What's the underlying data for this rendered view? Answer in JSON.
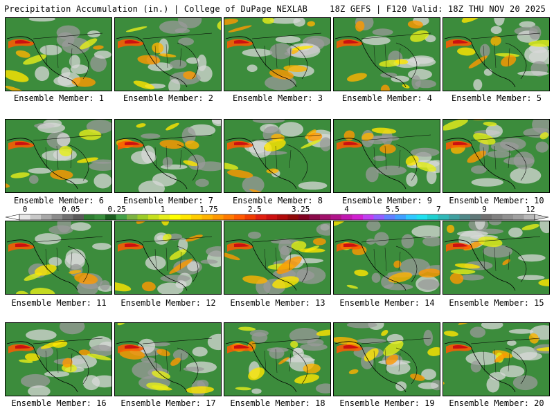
{
  "header": {
    "left": "Precipitation Accumulation (in.) | College of DuPage NEXLAB",
    "right": "18Z GEFS | F120 Valid: 18Z THU NOV 20 2025"
  },
  "members": [
    {
      "label": "Ensemble Member: 1"
    },
    {
      "label": "Ensemble Member: 2"
    },
    {
      "label": "Ensemble Member: 3"
    },
    {
      "label": "Ensemble Member: 4"
    },
    {
      "label": "Ensemble Member: 5"
    },
    {
      "label": "Ensemble Member: 6"
    },
    {
      "label": "Ensemble Member: 7"
    },
    {
      "label": "Ensemble Member: 8"
    },
    {
      "label": "Ensemble Member: 9"
    },
    {
      "label": "Ensemble Member: 10"
    },
    {
      "label": "Ensemble Member: 11"
    },
    {
      "label": "Ensemble Member: 12"
    },
    {
      "label": "Ensemble Member: 13"
    },
    {
      "label": "Ensemble Member: 14"
    },
    {
      "label": "Ensemble Member: 15"
    },
    {
      "label": "Ensemble Member: 16"
    },
    {
      "label": "Ensemble Member: 17"
    },
    {
      "label": "Ensemble Member: 18"
    },
    {
      "label": "Ensemble Member: 19"
    },
    {
      "label": "Ensemble Member: 20"
    }
  ],
  "colorbar": {
    "tick_labels": [
      "0",
      "0.05",
      "0.25",
      "1",
      "1.75",
      "2.5",
      "3.25",
      "4",
      "5.5",
      "7",
      "9",
      "12"
    ],
    "colors": [
      "#e6e6e6",
      "#c8c8c8",
      "#a8a8a8",
      "#8c8c8c",
      "#707070",
      "#5a5a5a",
      "#2e7d32",
      "#388e3c",
      "#1b5e20",
      "#43a047",
      "#7cb342",
      "#9ccc28",
      "#c6e01e",
      "#e6ee1a",
      "#ffff00",
      "#ffe600",
      "#ffcc00",
      "#ffb300",
      "#ff9800",
      "#ff7a00",
      "#ff5a00",
      "#f03c00",
      "#e02010",
      "#cc1010",
      "#b00a0a",
      "#900808",
      "#800020",
      "#8a0a4a",
      "#a0106a",
      "#b0148a",
      "#c018b0",
      "#d020d0",
      "#c040f0",
      "#9060ff",
      "#6080ff",
      "#40a0ff",
      "#30c8ff",
      "#20e0f0",
      "#20d0d0",
      "#30b8b8",
      "#40a0a0",
      "#508888",
      "#607878",
      "#707070",
      "#808080",
      "#909090",
      "#a0a0a0",
      "#b8b8b8"
    ]
  }
}
